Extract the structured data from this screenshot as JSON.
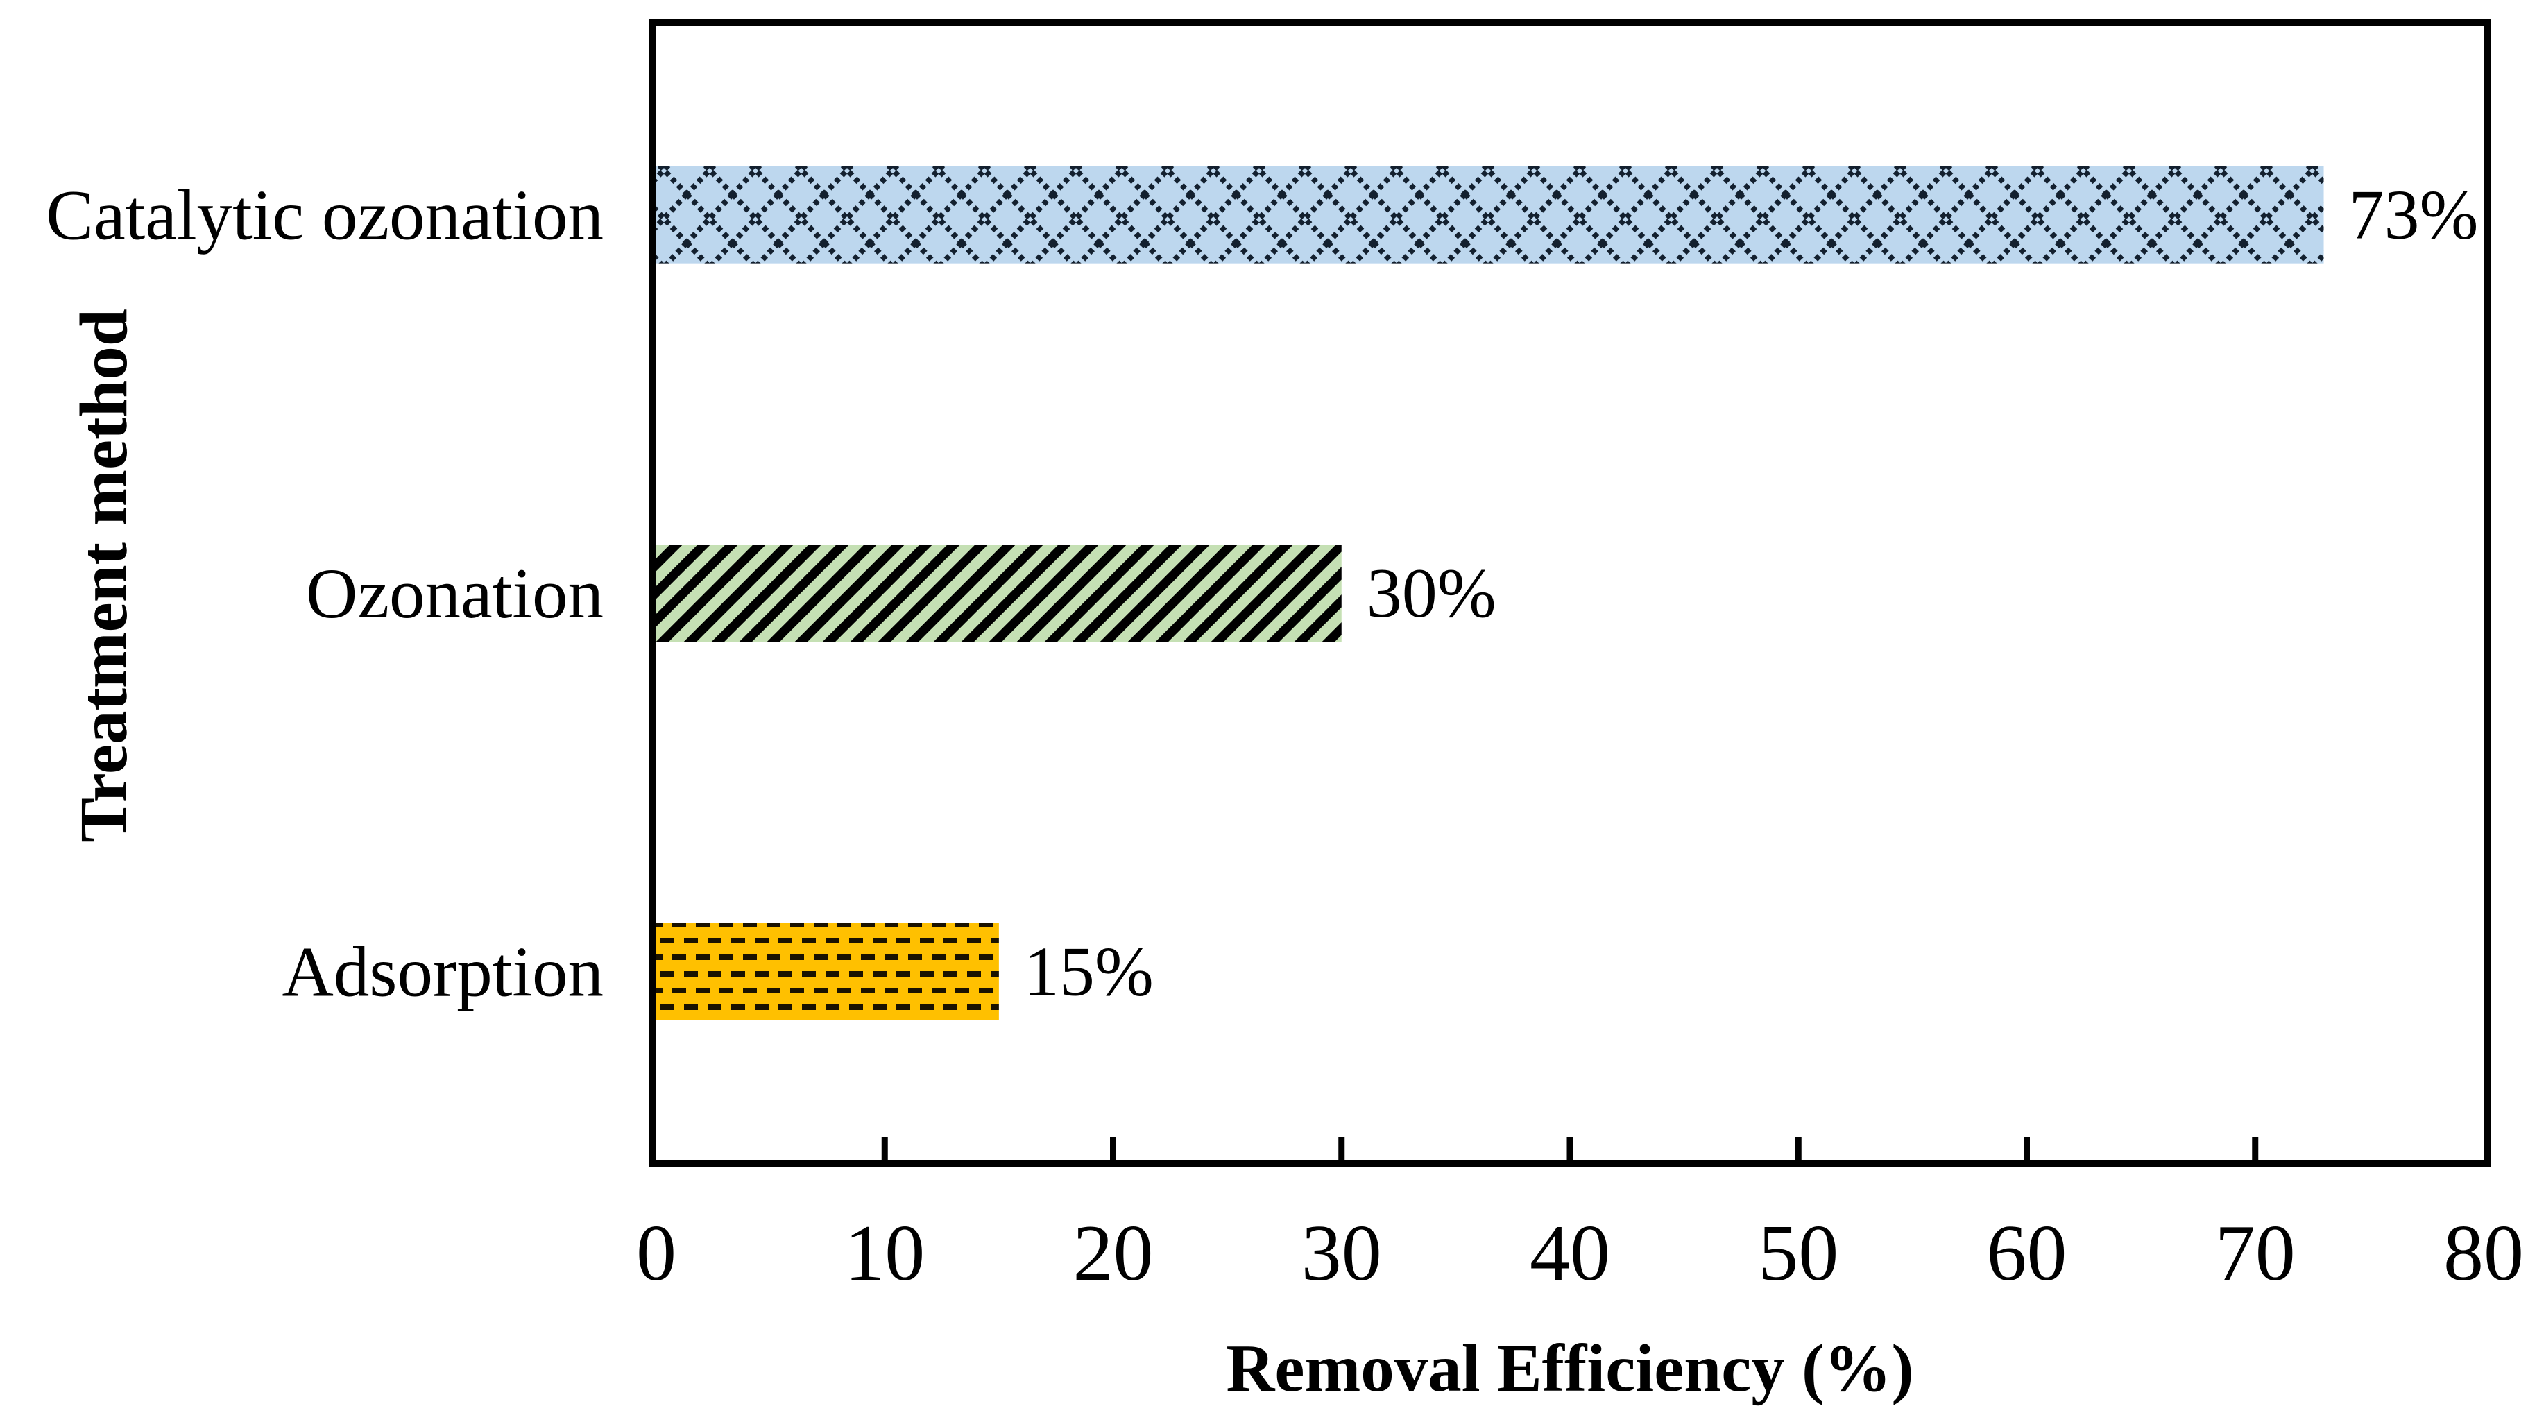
{
  "chart_data": {
    "type": "bar",
    "orientation": "horizontal",
    "title": "",
    "xlabel": "Removal Efficiency (%)",
    "ylabel": "Treatment method",
    "xlim": [
      0,
      80
    ],
    "xticks": [
      0,
      10,
      20,
      30,
      40,
      50,
      60,
      70,
      80
    ],
    "grid": false,
    "legend": null,
    "categories": [
      "Catalytic ozonation",
      "Ozonation",
      "Adsorption"
    ],
    "values": [
      73,
      30,
      15
    ],
    "bars": [
      {
        "label": "Catalytic ozonation",
        "value": 73,
        "value_label": "73%",
        "fill": "#BDD7EE",
        "hatch": "crosshatch",
        "hatch_color": "#13202F"
      },
      {
        "label": "Ozonation",
        "value": 30,
        "value_label": "30%",
        "fill": "#C5E0B4",
        "hatch": "diagonal",
        "hatch_color": "#000000"
      },
      {
        "label": "Adsorption",
        "value": 15,
        "value_label": "15%",
        "fill": "#FFC000",
        "hatch": "dashed-horizontal",
        "hatch_color": "#1A1200"
      }
    ]
  }
}
